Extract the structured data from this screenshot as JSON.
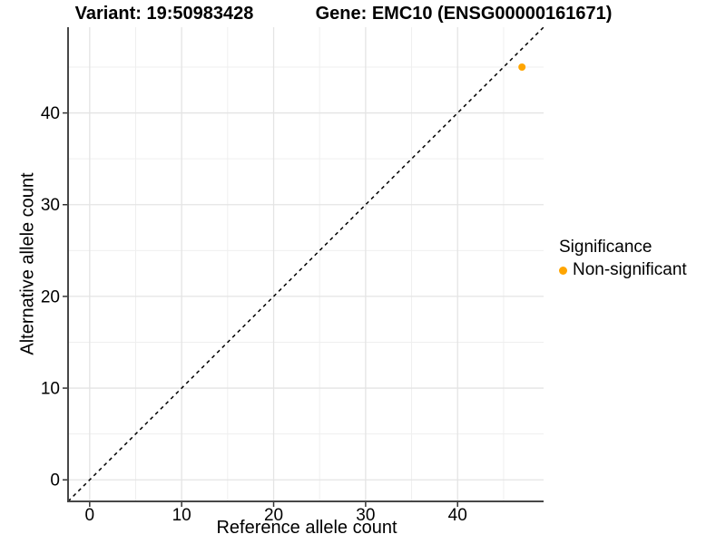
{
  "chart_data": {
    "type": "scatter",
    "title_variant": "Variant: 19:50983428",
    "title_gene": "Gene: EMC10 (ENSG00000161671)",
    "xlabel": "Reference allele count",
    "ylabel": "Alternative allele count",
    "xlim": [
      -2.35,
      49.35
    ],
    "ylim": [
      -2.35,
      49.35
    ],
    "xticks": [
      0,
      10,
      20,
      30,
      40
    ],
    "yticks": [
      0,
      10,
      20,
      30,
      40
    ],
    "xminor": [
      5,
      15,
      25,
      35,
      45
    ],
    "yminor": [
      5,
      15,
      25,
      35,
      45
    ],
    "grid": "major+minor",
    "series": [
      {
        "name": "Non-significant",
        "color": "#FFA500",
        "points": [
          {
            "x": 47,
            "y": 45
          }
        ]
      }
    ],
    "reference_line": {
      "type": "identity",
      "style": "dashed",
      "color": "#000000"
    },
    "legend": {
      "title": "Significance",
      "position": "right",
      "items": [
        {
          "label": "Non-significant",
          "color": "#FFA500"
        }
      ]
    }
  },
  "style": {
    "background": "#FFFFFF",
    "grid_major_color": "#E4E4E4",
    "grid_minor_color": "#EFEFEF",
    "axis_line_color": "#474747",
    "tick_color": "#333333",
    "text_color": "#000000"
  }
}
